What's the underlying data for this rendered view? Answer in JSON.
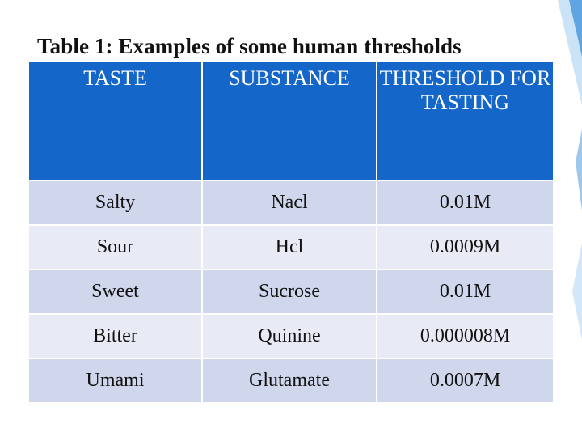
{
  "title": "Table 1: Examples of some human thresholds",
  "table": {
    "headers": [
      "TASTE",
      "SUBSTANCE",
      "THRESHOLD FOR TASTING"
    ],
    "rows": [
      [
        "Salty",
        "Nacl",
        "0.01M"
      ],
      [
        "Sour",
        "Hcl",
        "0.0009M"
      ],
      [
        "Sweet",
        "Sucrose",
        "0.01M"
      ],
      [
        "Bitter",
        "Quinine",
        "0.000008M"
      ],
      [
        "Umami",
        "Glutamate",
        "0.0007M"
      ]
    ]
  },
  "colors": {
    "header_bg": "#1466c9",
    "row_odd_bg": "#d0d7ec",
    "row_even_bg": "#e8ebf5",
    "decor_accent": "#3b8fd9"
  }
}
